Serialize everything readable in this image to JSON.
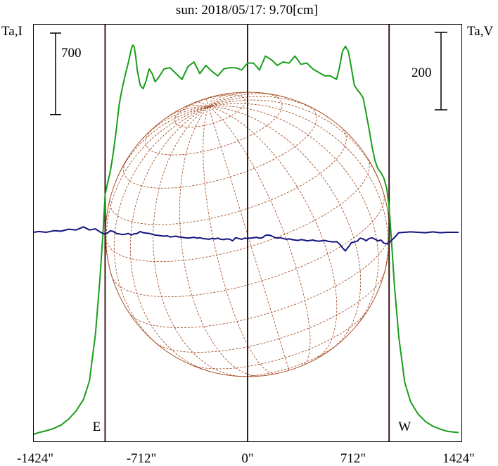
{
  "chart_data": {
    "type": "line",
    "title": "sun: 2018/05/17: 9.70[cm]",
    "title_color": "#1b1b7a",
    "y_left_label": "Ta,I",
    "y_right_label": "Ta,V",
    "x_unit": "arcsec",
    "x_range": [
      -1450,
      1424
    ],
    "x_ticks": [
      {
        "value": -1424,
        "label": "-1424\""
      },
      {
        "value": -712,
        "label": "-712\""
      },
      {
        "value": 0,
        "label": "0\""
      },
      {
        "value": 712,
        "label": "712\""
      },
      {
        "value": 1424,
        "label": "1424\""
      }
    ],
    "limb_markers": [
      {
        "value": -955,
        "label": "E"
      },
      {
        "value": 955,
        "label": "W"
      }
    ],
    "center_line": 0,
    "scale_bars": [
      {
        "side": "left",
        "value": 700,
        "label": "700"
      },
      {
        "side": "right",
        "value": 200,
        "label": "200"
      }
    ],
    "grid": false,
    "series": [
      {
        "key": "I",
        "color": "#1a9e1a",
        "x": [
          -1450,
          -1400,
          -1350,
          -1300,
          -1250,
          -1200,
          -1150,
          -1100,
          -1060,
          -1020,
          -990,
          -970,
          -955,
          -940,
          -920,
          -900,
          -880,
          -860,
          -840,
          -820,
          -800,
          -790,
          -780,
          -770,
          -760,
          -750,
          -740,
          -720,
          -700,
          -680,
          -660,
          -640,
          -620,
          -600,
          -560,
          -520,
          -480,
          -440,
          -400,
          -360,
          -320,
          -280,
          -240,
          -200,
          -160,
          -120,
          -80,
          -40,
          0,
          40,
          80,
          120,
          160,
          200,
          240,
          280,
          320,
          360,
          400,
          440,
          480,
          520,
          560,
          600,
          620,
          640,
          660,
          680,
          700,
          720,
          740,
          760,
          780,
          800,
          820,
          840,
          860,
          880,
          900,
          920,
          940,
          955,
          970,
          990,
          1020,
          1060,
          1100,
          1150,
          1200,
          1250,
          1300,
          1350,
          1424
        ],
        "y": [
          0,
          15,
          30,
          50,
          80,
          130,
          200,
          300,
          460,
          860,
          1330,
          1720,
          2060,
          2150,
          2260,
          2420,
          2620,
          2840,
          2980,
          3090,
          3190,
          3250,
          3310,
          3345,
          3330,
          3250,
          3130,
          3000,
          2970,
          3040,
          3140,
          3100,
          3030,
          3060,
          3140,
          3150,
          3100,
          3050,
          3160,
          3200,
          3100,
          3170,
          3120,
          3080,
          3140,
          3150,
          3150,
          3130,
          3190,
          3190,
          3130,
          3250,
          3220,
          3170,
          3200,
          3190,
          3250,
          3180,
          3190,
          3140,
          3110,
          3080,
          3080,
          3050,
          3150,
          3290,
          3335,
          3290,
          3150,
          3000,
          2960,
          2930,
          2890,
          2760,
          2620,
          2470,
          2350,
          2280,
          2250,
          2200,
          2110,
          1950,
          1680,
          1290,
          840,
          450,
          280,
          175,
          110,
          70,
          45,
          25,
          15
        ]
      },
      {
        "key": "V",
        "color": "#141482",
        "x": [
          -1450,
          -1400,
          -1350,
          -1300,
          -1250,
          -1200,
          -1150,
          -1100,
          -1060,
          -1020,
          -990,
          -970,
          -955,
          -940,
          -920,
          -900,
          -880,
          -860,
          -840,
          -820,
          -800,
          -780,
          -760,
          -740,
          -720,
          -700,
          -680,
          -660,
          -640,
          -620,
          -600,
          -580,
          -560,
          -540,
          -520,
          -500,
          -480,
          -460,
          -440,
          -420,
          -400,
          -380,
          -360,
          -340,
          -320,
          -300,
          -280,
          -260,
          -240,
          -220,
          -200,
          -180,
          -160,
          -140,
          -120,
          -100,
          -80,
          -60,
          -40,
          -20,
          0,
          20,
          40,
          60,
          80,
          100,
          120,
          140,
          160,
          180,
          200,
          220,
          240,
          260,
          280,
          300,
          320,
          340,
          360,
          380,
          400,
          420,
          440,
          460,
          480,
          500,
          520,
          540,
          560,
          580,
          600,
          620,
          640,
          660,
          680,
          700,
          720,
          740,
          760,
          780,
          800,
          820,
          840,
          860,
          880,
          900,
          920,
          940,
          955,
          970,
          990,
          1020,
          1060,
          1100,
          1150,
          1200,
          1250,
          1300,
          1350,
          1400,
          1424
        ],
        "y": [
          0,
          2,
          0,
          4,
          3,
          8,
          6,
          14,
          6,
          9,
          1,
          -3,
          -5,
          -2,
          4,
          2,
          -3,
          -4,
          -6,
          -5,
          -3,
          -7,
          -4,
          -3,
          2,
          -1,
          -2,
          -3,
          -5,
          -7,
          -8,
          -9,
          -10,
          -9,
          -12,
          -11,
          -10,
          -12,
          -13,
          -14,
          -15,
          -14,
          -13,
          -15,
          -14,
          -16,
          -17,
          -18,
          -16,
          -17,
          -15,
          -18,
          -19,
          -17,
          -18,
          -22,
          -14,
          -16,
          -18,
          -15,
          -16,
          -15,
          -14,
          -13,
          -15,
          -14,
          -8,
          -7,
          -9,
          -13,
          -15,
          -14,
          -16,
          -18,
          -17,
          -19,
          -20,
          -21,
          -19,
          -20,
          -22,
          -21,
          -20,
          -22,
          -23,
          -22,
          -21,
          -23,
          -24,
          -25,
          -24,
          -30,
          -40,
          -48,
          -38,
          -27,
          -25,
          -23,
          -15,
          -17,
          -22,
          -16,
          -14,
          -18,
          -22,
          -20,
          -28,
          -30,
          -27,
          -21,
          -14,
          -1,
          0,
          1,
          0,
          -1,
          1,
          -1,
          0,
          0,
          0
        ]
      }
    ]
  },
  "disk_grid": {
    "color": "#a8532a",
    "p_angle_deg": 17,
    "b0_deg": 20
  },
  "line_colors": {
    "vertical_lines": "#3a1a1a",
    "scale_bars": "#000000"
  }
}
